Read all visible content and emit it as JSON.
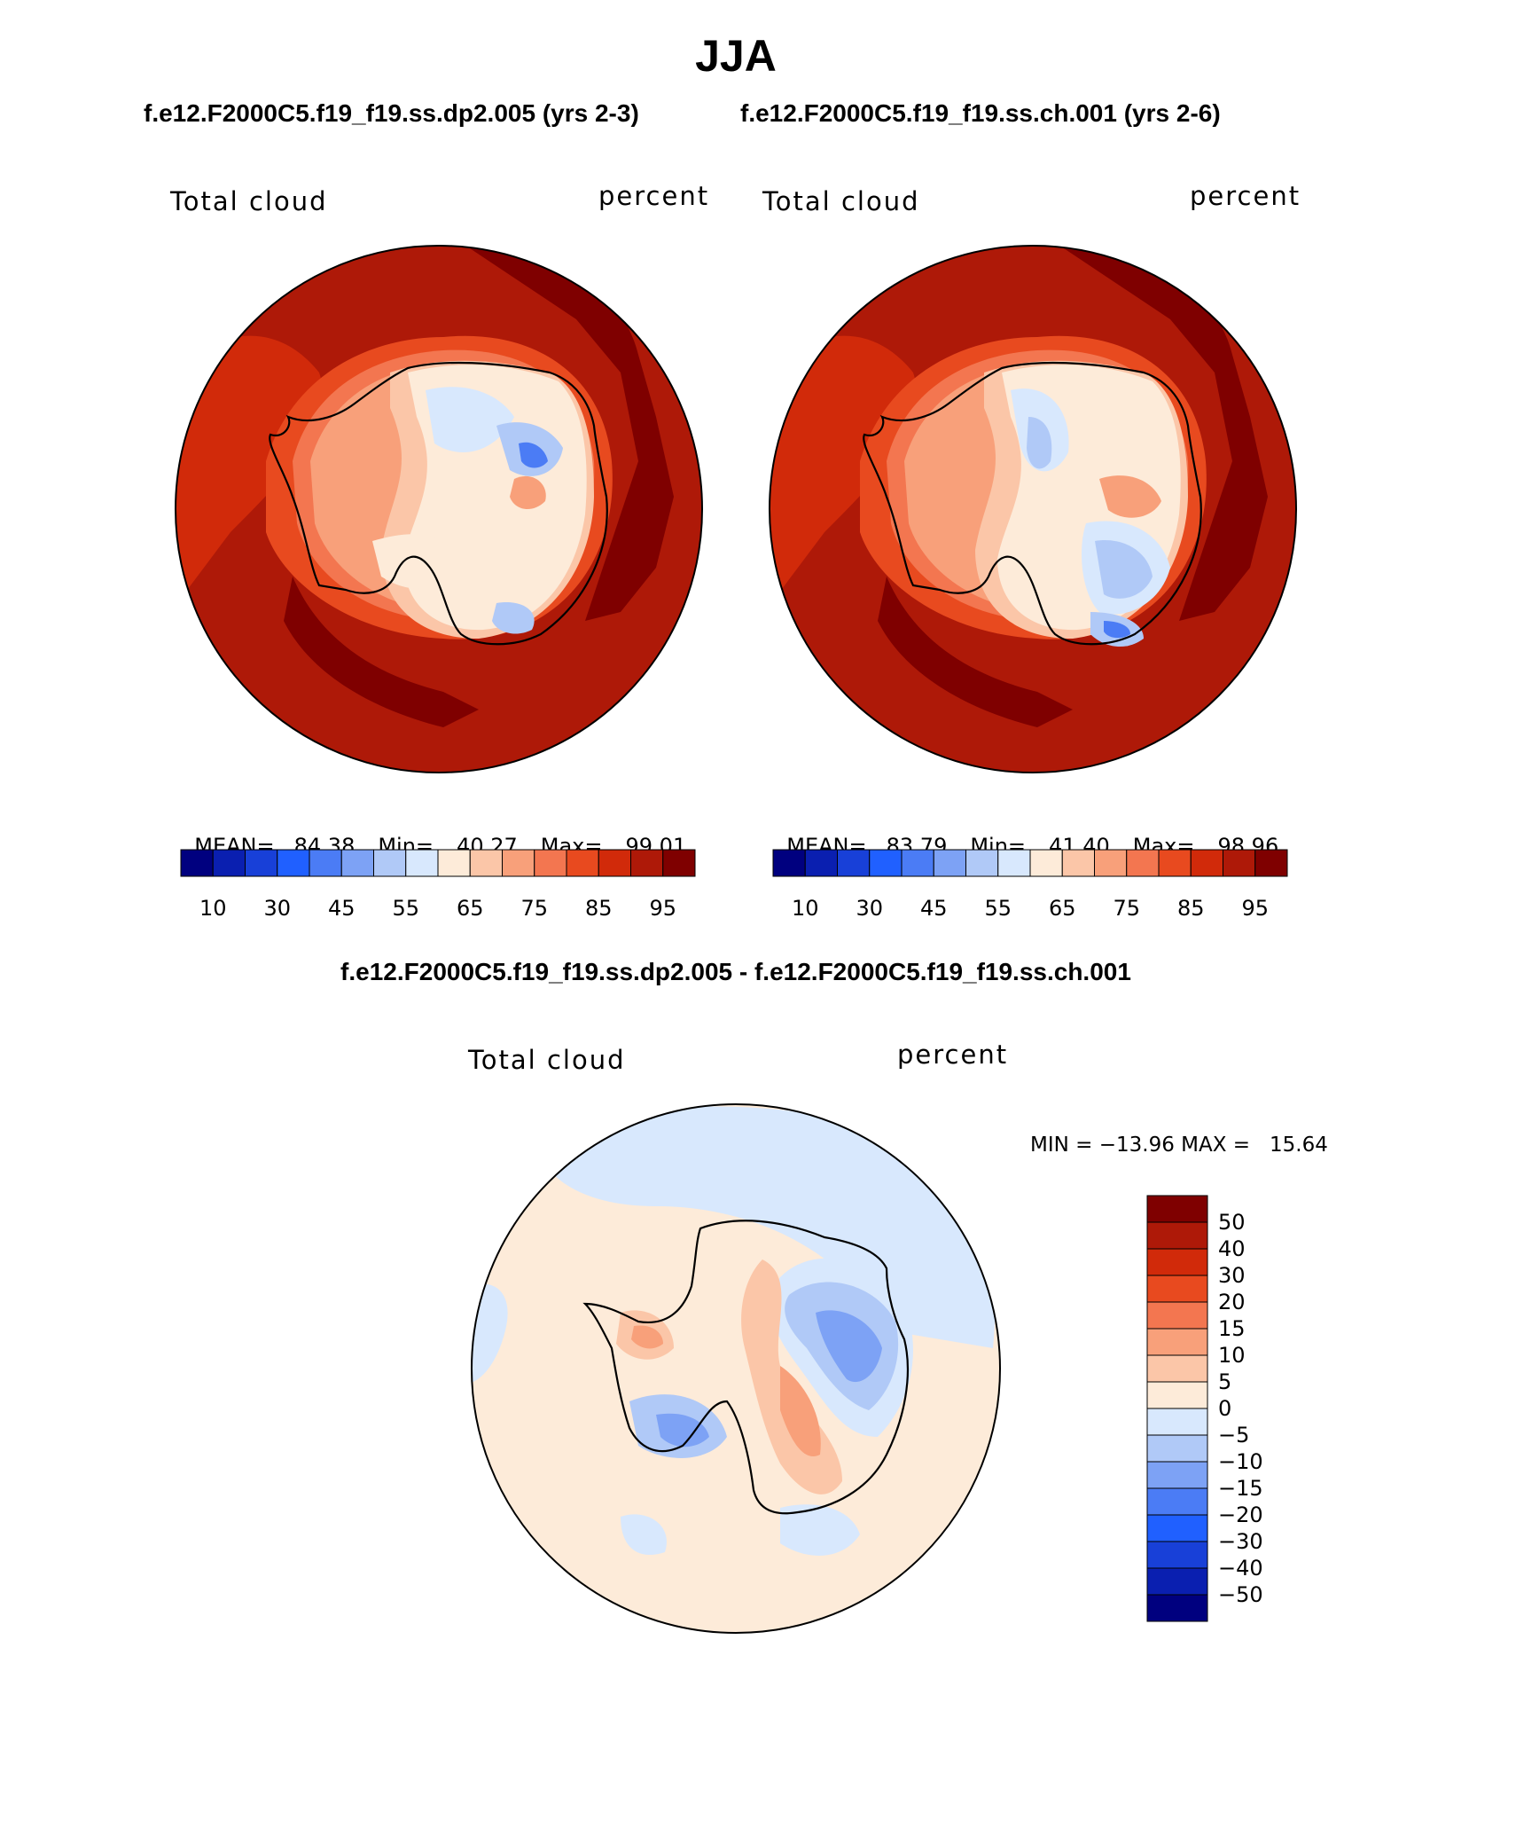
{
  "page_title": "JJA",
  "panels": [
    {
      "case_label": "f.e12.F2000C5.f19_f19.ss.dp2.005 (yrs 2-3)",
      "variable": "Total cloud",
      "units": "percent",
      "stats": {
        "mean_label": "MEAN=",
        "mean": "84.38",
        "min_label": "Min=",
        "min": "40.27",
        "max_label": "Max=",
        "max": "99.01"
      }
    },
    {
      "case_label": "f.e12.F2000C5.f19_f19.ss.ch.001 (yrs 2-6)",
      "variable": "Total cloud",
      "units": "percent",
      "stats": {
        "mean_label": "MEAN=",
        "mean": "83.79",
        "min_label": "Min=",
        "min": "41.40",
        "max_label": "Max=",
        "max": "98.96"
      }
    }
  ],
  "colorbar_top": {
    "colors": [
      "#00007f",
      "#0a1fb0",
      "#1840d8",
      "#2060ff",
      "#4b7cf5",
      "#7da2f5",
      "#b0c9f7",
      "#d8e8fd",
      "#fdebd9",
      "#fbc6a8",
      "#f8a07a",
      "#f37650",
      "#e84a1f",
      "#d12a0a",
      "#ae1908",
      "#7f0000"
    ],
    "tick_labels": [
      "10",
      "30",
      "45",
      "55",
      "65",
      "75",
      "85",
      "95"
    ]
  },
  "difference": {
    "title": "f.e12.F2000C5.f19_f19.ss.dp2.005 - f.e12.F2000C5.f19_f19.ss.ch.001",
    "variable": "Total cloud",
    "units": "percent",
    "minmax_label": "MIN = −13.96 MAX =   15.64",
    "colorbar": {
      "colors_top_to_bottom": [
        "#7f0000",
        "#ae1908",
        "#d12a0a",
        "#e84a1f",
        "#f37650",
        "#f8a07a",
        "#fbc6a8",
        "#fdebd9",
        "#d8e8fd",
        "#b0c9f7",
        "#7da2f5",
        "#4b7cf5",
        "#2060ff",
        "#1840d8",
        "#0a1fb0",
        "#00007f"
      ],
      "tick_labels": [
        "50",
        "40",
        "30",
        "20",
        "15",
        "10",
        "5",
        "0",
        "−5",
        "−10",
        "−15",
        "−20",
        "−30",
        "−40",
        "−50"
      ]
    }
  }
}
